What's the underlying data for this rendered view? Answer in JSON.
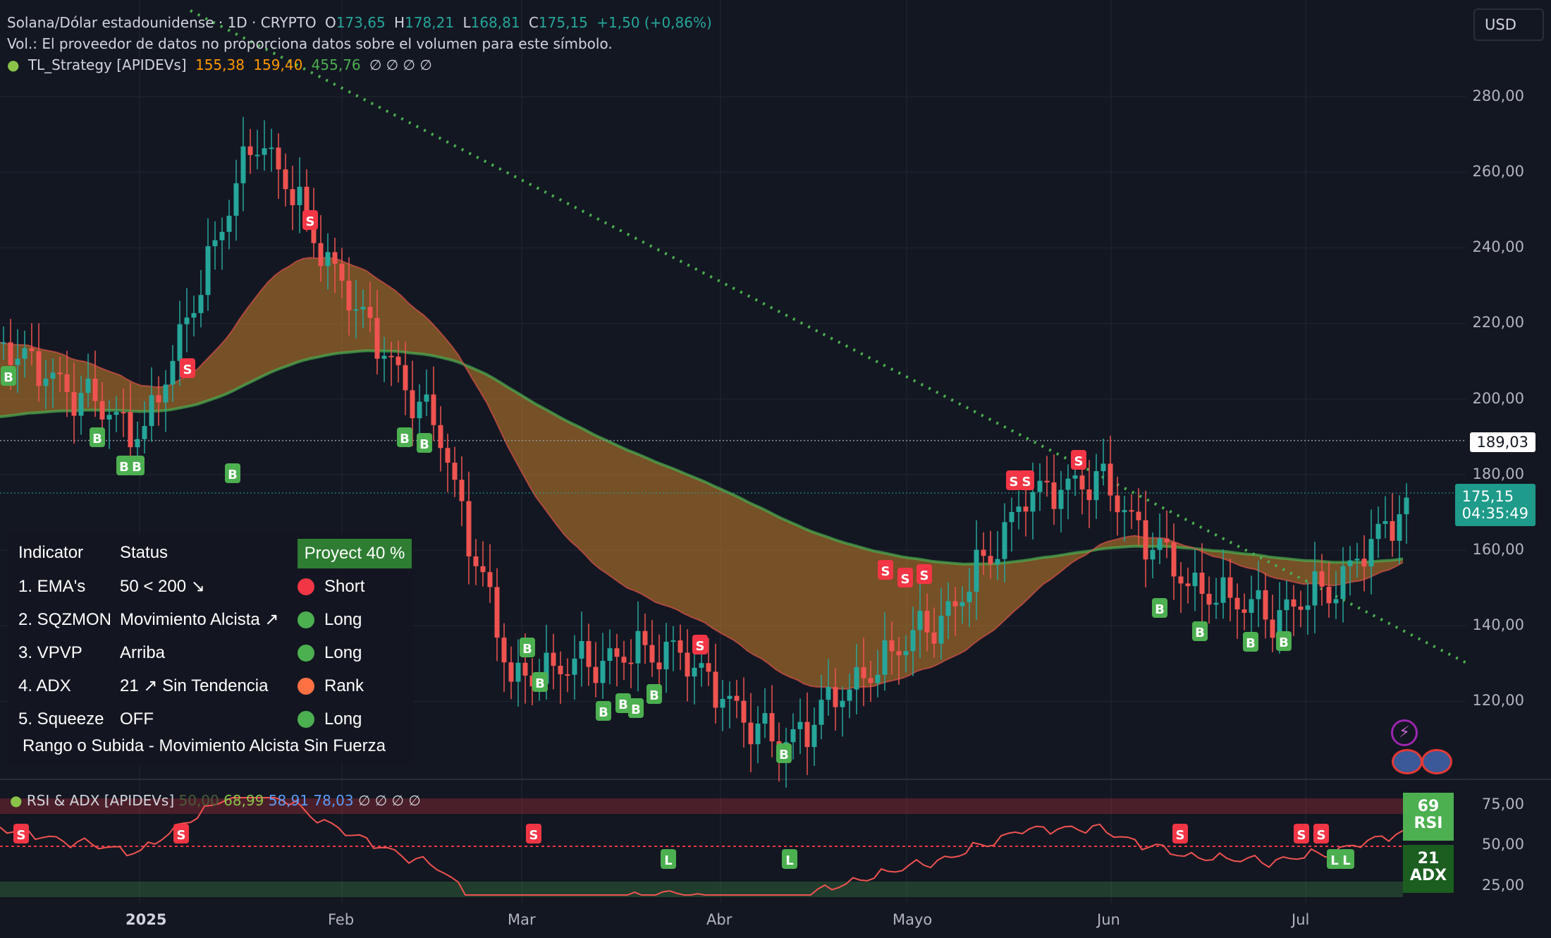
{
  "legend": {
    "symbol": "Solana/Dólar estadounidense · 1D · CRYPTO",
    "o_label": "O",
    "o": "173,65",
    "h_label": "H",
    "h": "178,21",
    "l_label": "L",
    "l": "168,81",
    "c_label": "C",
    "c": "175,15",
    "change": "+1,50 (+0,86%)",
    "vol_note": "Vol.: El proveedor de datos no proporciona datos sobre el volumen para este símbolo.",
    "strategy_name": "TL_Strategy [APIDEVs]",
    "strategy_v1": "155,38",
    "strategy_v2": "159,40",
    "strategy_v3": "455,76",
    "strategy_rest": "∅ ∅ ∅ ∅"
  },
  "currency_button": "USD",
  "price_axis": [
    "280,00",
    "260,00",
    "240,00",
    "220,00",
    "200,00",
    "180,00",
    "160,00",
    "140,00",
    "120,00"
  ],
  "crosshair_price": "189,03",
  "last_price": "175,15",
  "countdown": "04:35:49",
  "date_axis": [
    "2025",
    "Feb",
    "Mar",
    "Abr",
    "Mayo",
    "Jun",
    "Jul"
  ],
  "indicator_table": {
    "header": {
      "col1": "Indicator",
      "col2": "Status",
      "col3": "Proyect 40 %"
    },
    "rows": [
      {
        "name": "1. EMA's",
        "status": "50 < 200 ↘",
        "signal": "Short",
        "color": "#f23645"
      },
      {
        "name": "2. SQZMON",
        "status": "Movimiento Alcista ↗",
        "signal": "Long",
        "color": "#4caf50"
      },
      {
        "name": "3. VPVP",
        "status": "Arriba",
        "signal": "Long",
        "color": "#4caf50"
      },
      {
        "name": "4. ADX",
        "status": "21 ↗ Sin Tendencia",
        "signal": "Rank",
        "color": "#ff7043"
      },
      {
        "name": "5. Squeeze",
        "status": "OFF",
        "signal": "Long",
        "color": "#4caf50"
      }
    ],
    "footer": "Rango o Subida - Movimiento Alcista Sin Fuerza"
  },
  "rsi_panel": {
    "name": "RSI & ADX [APIDEVs]",
    "v0": "50,00",
    "v1": "68,99",
    "v2": "58,91",
    "v3": "78,03",
    "rest": "∅ ∅ ∅ ∅",
    "axis": [
      "75,00",
      "50,00",
      "25,00"
    ],
    "rsi_value": "69",
    "rsi_label": "RSI",
    "adx_value": "21",
    "adx_label": "ADX"
  },
  "signal_markers": {
    "buy": "B",
    "sell": "S",
    "long": "L"
  },
  "colors": {
    "background": "#131722",
    "up": "#26a69a",
    "down": "#ef5350",
    "trendline": "#4caf50",
    "buy_badge": "#4caf50",
    "sell_badge": "#f23645"
  },
  "chart_data": {
    "type": "candlestick",
    "price_range": [
      100,
      295
    ],
    "dates_visible": [
      "2025",
      "Feb",
      "Mar",
      "Abr",
      "Mayo",
      "Jun",
      "Jul"
    ],
    "last_close": 175.15,
    "ema_fast_last": 155.38,
    "ema_slow_last": 159.4,
    "rsi_last": 68.99,
    "adx_last": 21
  }
}
